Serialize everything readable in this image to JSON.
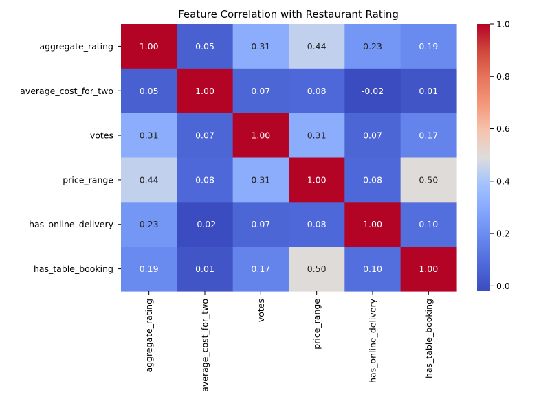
{
  "chart_data": {
    "type": "heatmap",
    "title": "Feature Correlation with Restaurant Rating",
    "row_labels": [
      "aggregate_rating",
      "average_cost_for_two",
      "votes",
      "price_range",
      "has_online_delivery",
      "has_table_booking"
    ],
    "col_labels": [
      "aggregate_rating",
      "average_cost_for_two",
      "votes",
      "price_range",
      "has_online_delivery",
      "has_table_booking"
    ],
    "values": [
      [
        1.0,
        0.05,
        0.31,
        0.44,
        0.23,
        0.19
      ],
      [
        0.05,
        1.0,
        0.07,
        0.08,
        -0.02,
        0.01
      ],
      [
        0.31,
        0.07,
        1.0,
        0.31,
        0.07,
        0.17
      ],
      [
        0.44,
        0.08,
        0.31,
        1.0,
        0.08,
        0.5
      ],
      [
        0.23,
        -0.02,
        0.07,
        0.08,
        1.0,
        0.1
      ],
      [
        0.19,
        0.01,
        0.17,
        0.5,
        0.1,
        1.0
      ]
    ],
    "value_format": "2 decimals",
    "colormap": "coolwarm",
    "colorbar": {
      "vmin": -0.02,
      "vmax": 1.0,
      "ticks": [
        0.0,
        0.2,
        0.4,
        0.6,
        0.8,
        1.0
      ],
      "tick_labels": [
        "0.0",
        "0.2",
        "0.4",
        "0.6",
        "0.8",
        "1.0"
      ]
    }
  }
}
